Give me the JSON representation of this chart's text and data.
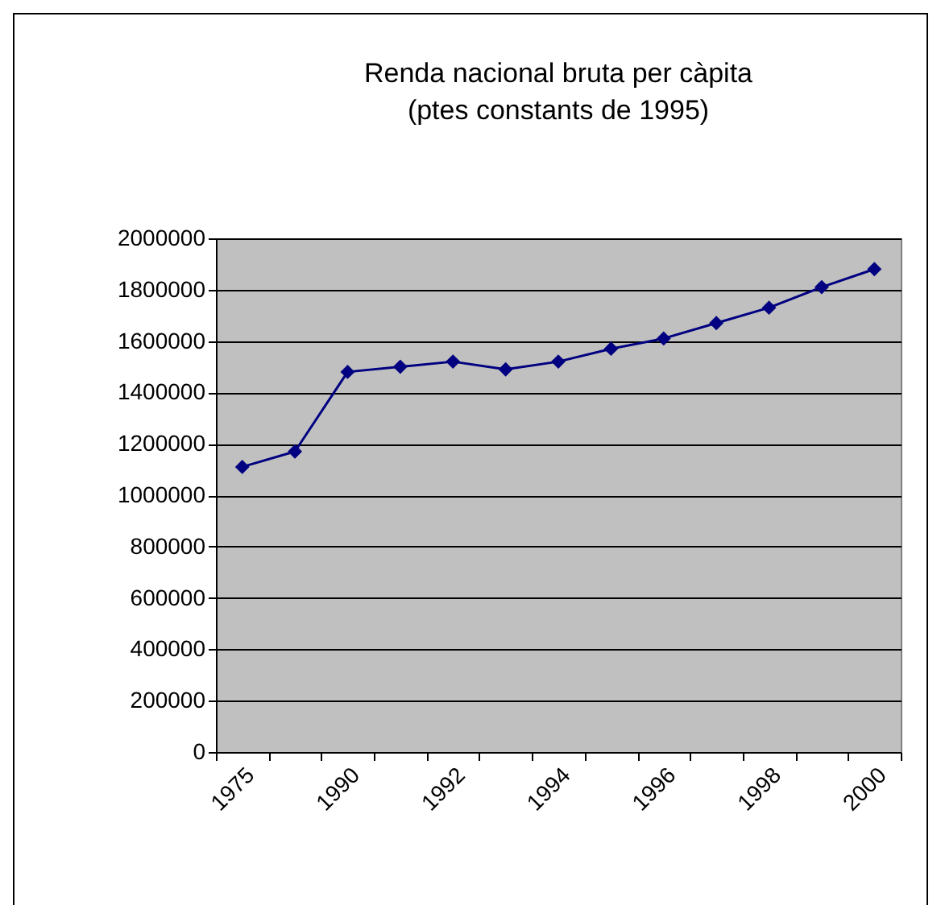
{
  "chart_data": {
    "type": "line",
    "title": "Renda nacional bruta per càpita",
    "subtitle": "(ptes constants de 1995)",
    "categories": [
      "1975",
      null,
      "1990",
      null,
      "1992",
      null,
      "1994",
      null,
      "1996",
      null,
      "1998",
      null,
      "2000"
    ],
    "series": [
      {
        "color": "#000080",
        "values": [
          1110000,
          1170000,
          1480000,
          1500000,
          1520000,
          1490000,
          1520000,
          1570000,
          1610000,
          1670000,
          1730000,
          1810000,
          1880000
        ]
      }
    ],
    "ylim": [
      0,
      2000000
    ],
    "yticks": [
      0,
      200000,
      400000,
      600000,
      800000,
      1000000,
      1200000,
      1400000,
      1600000,
      1800000,
      2000000
    ],
    "grid": "y",
    "marker": "diamond",
    "line_style": "solid"
  }
}
